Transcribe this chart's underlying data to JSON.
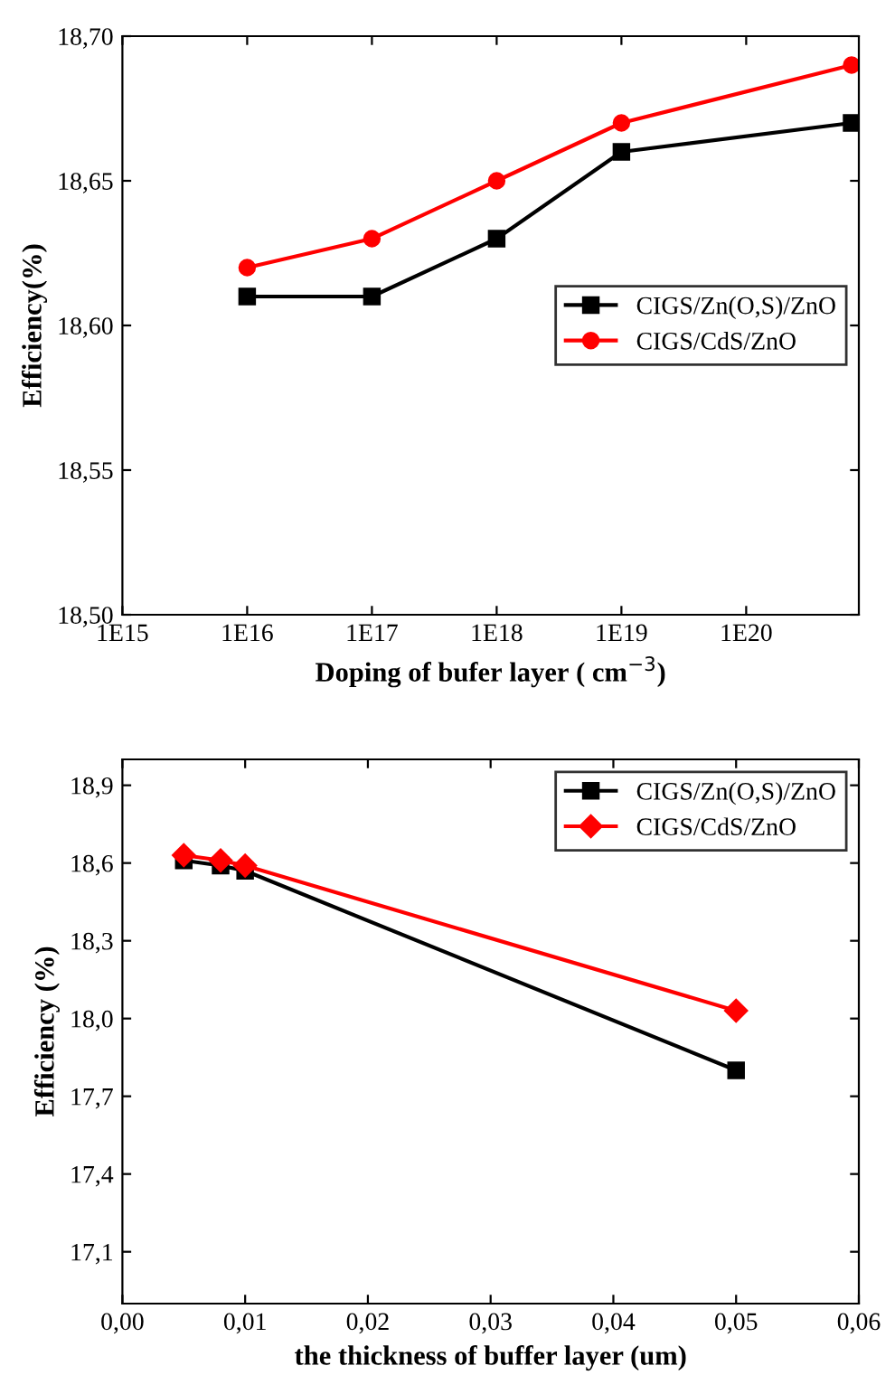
{
  "chart_data": [
    {
      "type": "line",
      "xlabel": "Doping of bufer layer ( cm$^{−3}$)",
      "ylabel": "Efficiency(%)",
      "log": "x",
      "x": [
        1e+16,
        1e+17,
        1e+18,
        1e+19,
        7e+20
      ],
      "xlim": [
        1000000000000000.0,
        8e+20
      ],
      "xticks": [
        {
          "value": 1000000000000000.0,
          "label": "1E15"
        },
        {
          "value": 1e+16,
          "label": "1E16"
        },
        {
          "value": 1e+17,
          "label": "1E17"
        },
        {
          "value": 1e+18,
          "label": "1E18"
        },
        {
          "value": 1e+19,
          "label": "1E19"
        },
        {
          "value": 1e+20,
          "label": "1E20"
        }
      ],
      "ylim": [
        18.5,
        18.7
      ],
      "yticks": [
        {
          "value": 18.5,
          "label": "18,50"
        },
        {
          "value": 18.55,
          "label": "18,55"
        },
        {
          "value": 18.6,
          "label": "18,60"
        },
        {
          "value": 18.65,
          "label": "18,65"
        },
        {
          "value": 18.7,
          "label": "18,70"
        }
      ],
      "legend": "right",
      "grid": false,
      "series": [
        {
          "name": "CIGS/Zn(O,S)/ZnO",
          "color": "#000000",
          "marker": "square",
          "values": [
            18.61,
            18.61,
            18.63,
            18.66,
            18.67
          ]
        },
        {
          "name": "CIGS/CdS/ZnO",
          "color": "#ff0000",
          "marker": "circle",
          "values": [
            18.62,
            18.63,
            18.65,
            18.67,
            18.69
          ]
        }
      ]
    },
    {
      "type": "line",
      "xlabel": "the thickness of buffer layer (um)",
      "ylabel": "Efficiency (%)",
      "x": [
        0.005,
        0.008,
        0.01,
        0.05
      ],
      "xlim": [
        0,
        0.06
      ],
      "xticks": [
        {
          "value": 0,
          "label": "0,00"
        },
        {
          "value": 0.01,
          "label": "0,01"
        },
        {
          "value": 0.02,
          "label": "0,02"
        },
        {
          "value": 0.03,
          "label": "0,03"
        },
        {
          "value": 0.04,
          "label": "0,04"
        },
        {
          "value": 0.05,
          "label": "0,05"
        },
        {
          "value": 0.06,
          "label": "0,06"
        }
      ],
      "ylim": [
        16.9,
        19.0
      ],
      "yticks": [
        {
          "value": 17.1,
          "label": "17,1"
        },
        {
          "value": 17.4,
          "label": "17,4"
        },
        {
          "value": 17.7,
          "label": "17,7"
        },
        {
          "value": 18.0,
          "label": "18,0"
        },
        {
          "value": 18.3,
          "label": "18,3"
        },
        {
          "value": 18.6,
          "label": "18,6"
        },
        {
          "value": 18.9,
          "label": "18,9"
        }
      ],
      "legend": "top right",
      "grid": false,
      "series": [
        {
          "name": "CIGS/Zn(O,S)/ZnO",
          "color": "#000000",
          "marker": "square",
          "values": [
            18.61,
            18.59,
            18.57,
            17.8
          ]
        },
        {
          "name": "CIGS/CdS/ZnO",
          "color": "#ff0000",
          "marker": "diamond",
          "values": [
            18.63,
            18.61,
            18.59,
            18.03
          ]
        }
      ]
    }
  ]
}
